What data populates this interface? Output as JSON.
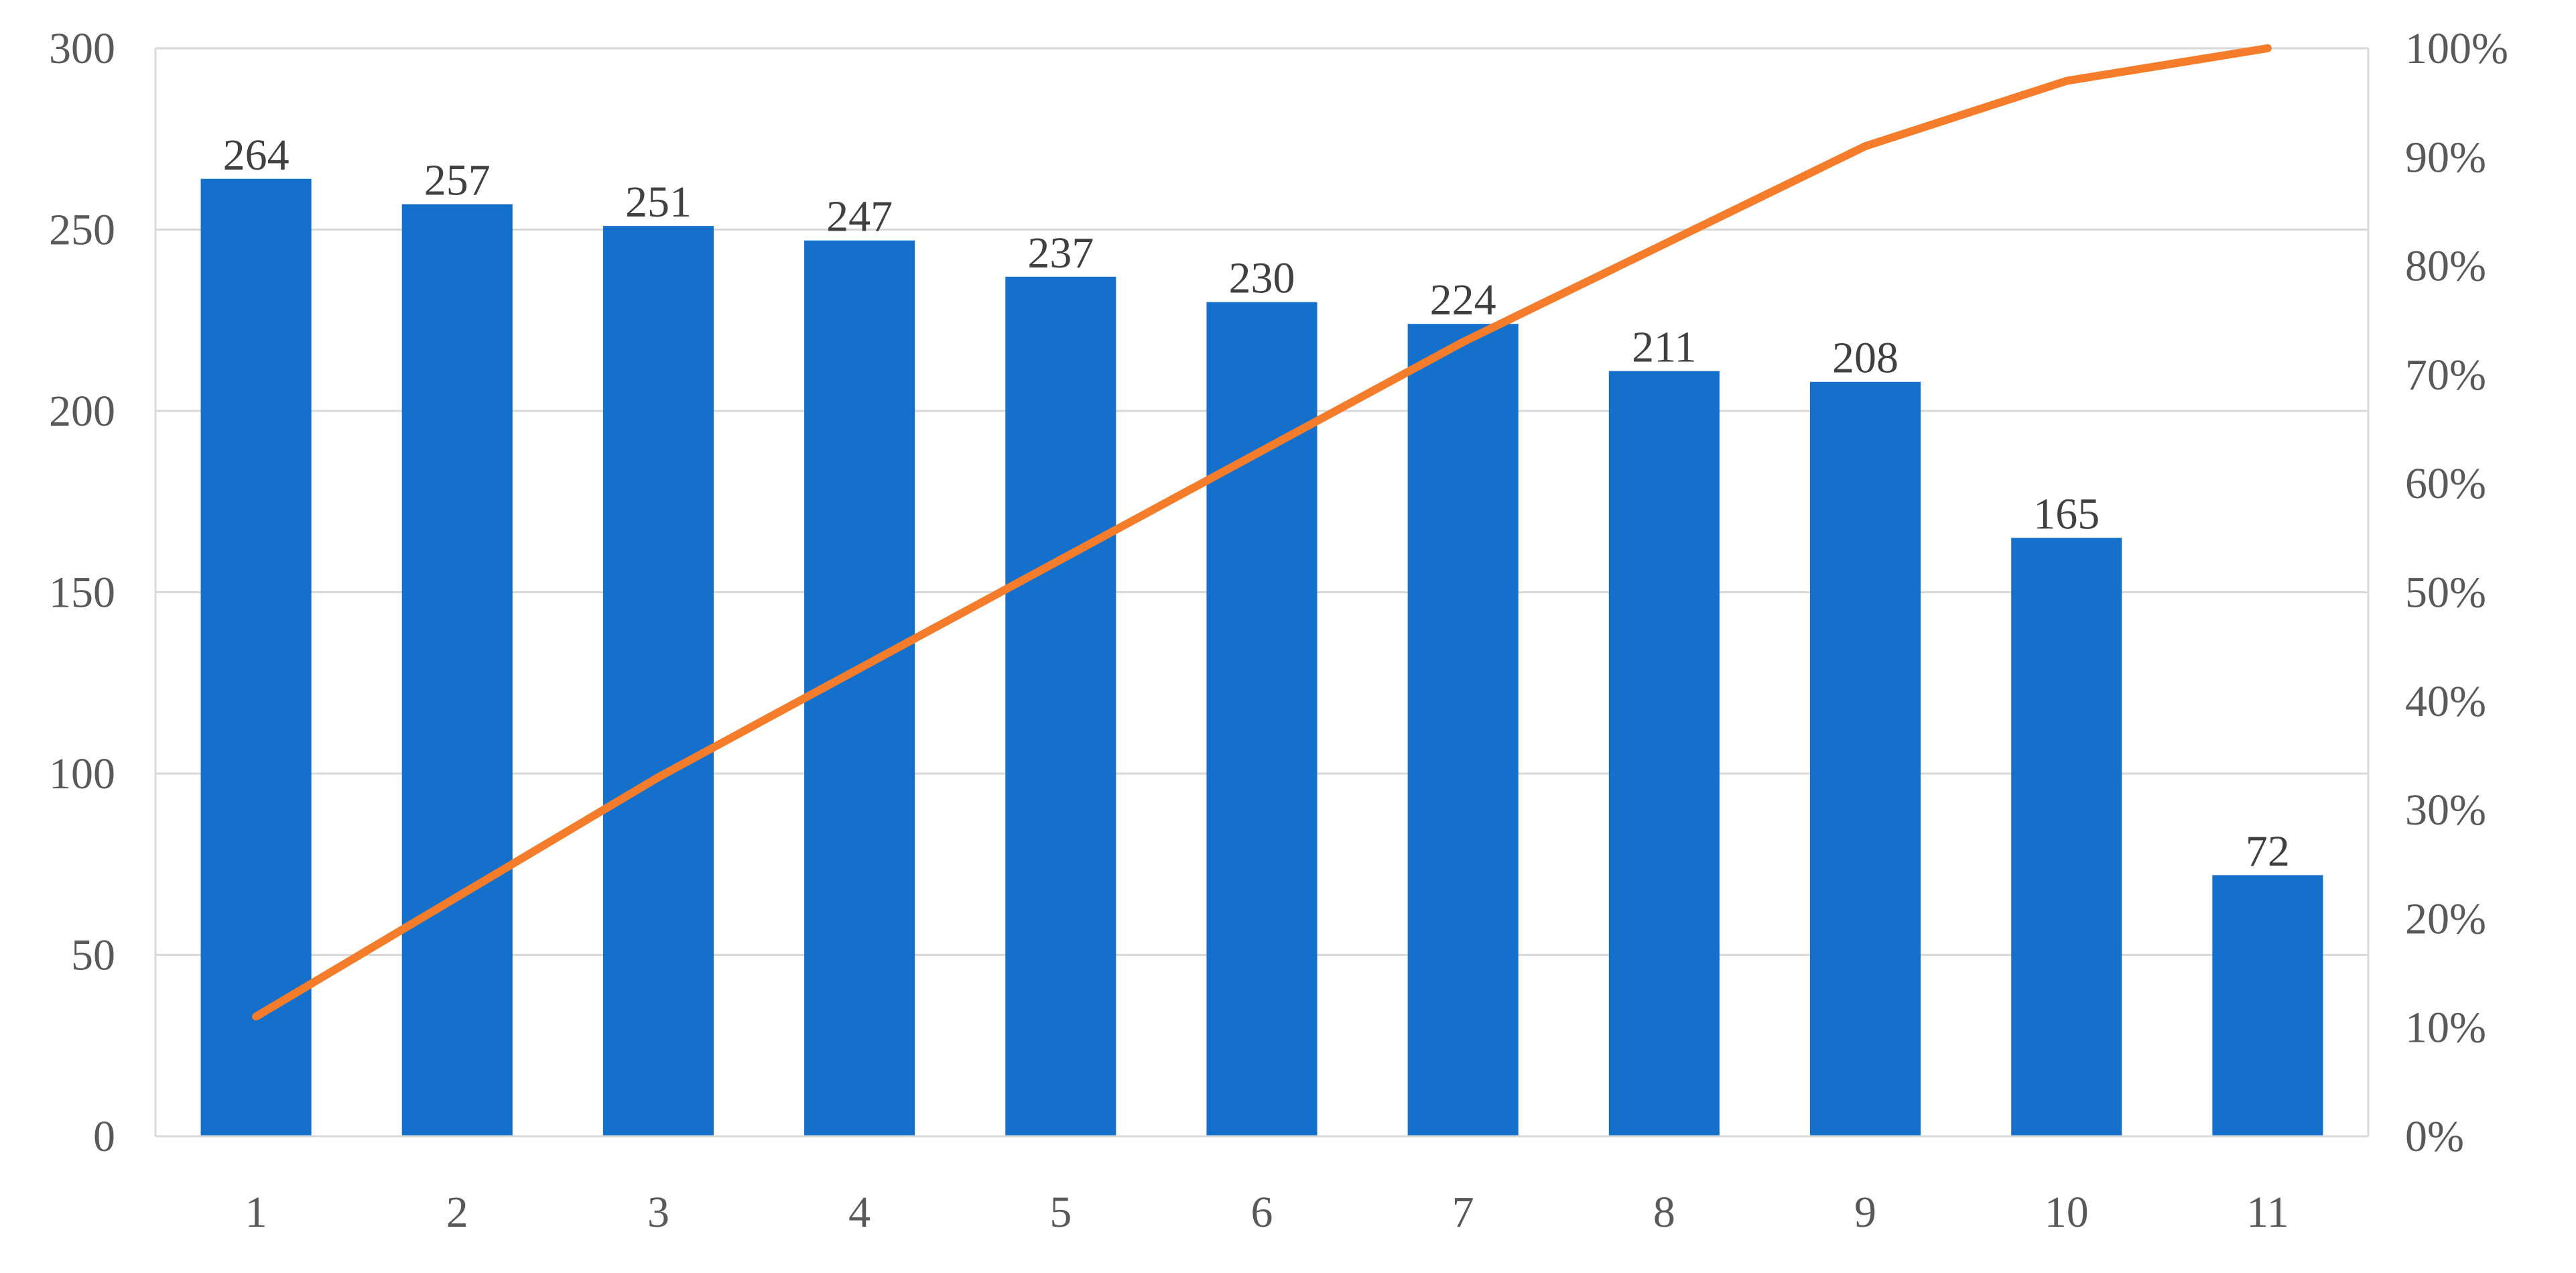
{
  "chart_data": {
    "type": "bar",
    "title": "",
    "xlabel": "",
    "ylabel": "",
    "categories": [
      "1",
      "2",
      "3",
      "4",
      "5",
      "6",
      "7",
      "8",
      "9",
      "10",
      "11"
    ],
    "series": [
      {
        "type": "bar",
        "axis": "left",
        "color": "#1570CC",
        "values": [
          264,
          257,
          251,
          247,
          237,
          230,
          224,
          211,
          208,
          165,
          72
        ]
      },
      {
        "type": "line",
        "axis": "right",
        "color": "#F47C2A",
        "values": [
          0.11,
          0.22,
          0.33,
          0.43,
          0.53,
          0.63,
          0.73,
          0.82,
          0.91,
          0.97,
          1.0
        ]
      }
    ],
    "ylim": [
      0,
      300
    ],
    "yticks": [
      0,
      50,
      100,
      150,
      200,
      250,
      300
    ],
    "y2lim": [
      0,
      1
    ],
    "y2ticks": [
      "0%",
      "10%",
      "20%",
      "30%",
      "40%",
      "50%",
      "60%",
      "70%",
      "80%",
      "90%",
      "100%"
    ],
    "data_labels": true,
    "grid": true,
    "legend": "none"
  }
}
